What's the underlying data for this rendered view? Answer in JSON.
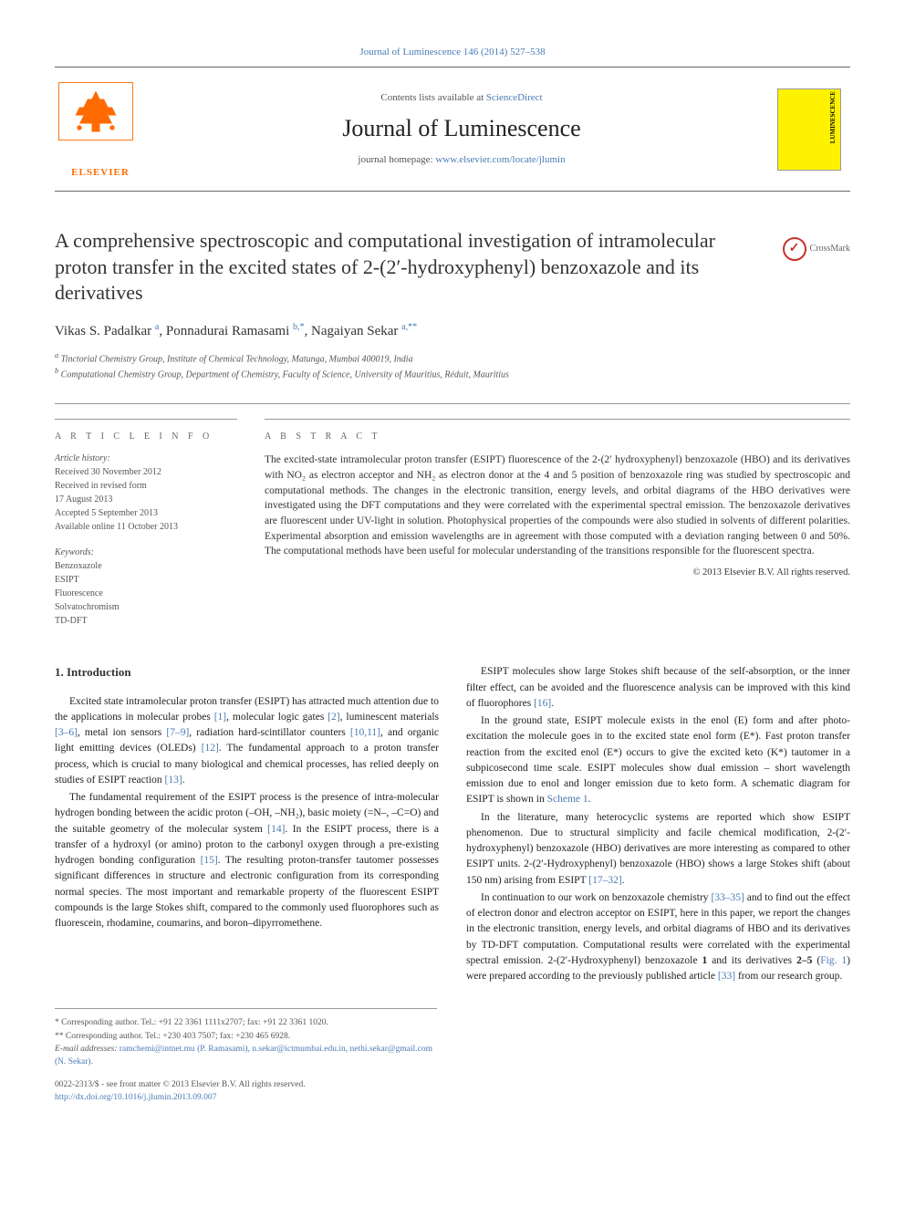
{
  "journal": {
    "top_link": "Journal of Luminescence 146 (2014) 527–538",
    "contents_line_prefix": "Contents lists available at ",
    "contents_link": "ScienceDirect",
    "title": "Journal of Luminescence",
    "homepage_prefix": "journal homepage: ",
    "homepage_url": "www.elsevier.com/locate/jlumin",
    "publisher_name": "ELSEVIER",
    "cover_label": "LUMINESCENCE"
  },
  "crossmark": {
    "label": "CrossMark"
  },
  "article": {
    "title": "A comprehensive spectroscopic and computational investigation of intramolecular proton transfer in the excited states of 2-(2′-hydroxyphenyl) benzoxazole and its derivatives",
    "authors_html": "Vikas S. Padalkar <sup class='author-sup'>a</sup>, Ponnadurai Ramasami <sup class='author-sup'>b,*</sup>, Nagaiyan Sekar <sup class='author-sup'>a,**</sup>",
    "affiliations": [
      "a Tinctorial Chemistry Group, Institute of Chemical Technology, Matunga, Mumbai 400019, India",
      "b Computational Chemistry Group, Department of Chemistry, Faculty of Science, University of Mauritius, Réduit, Mauritius"
    ]
  },
  "article_info": {
    "heading": "A R T I C L E   I N F O",
    "history_label": "Article history:",
    "history_lines": [
      "Received 30 November 2012",
      "Received in revised form",
      "17 August 2013",
      "Accepted 5 September 2013",
      "Available online 11 October 2013"
    ],
    "keywords_label": "Keywords:",
    "keywords": [
      "Benzoxazole",
      "ESIPT",
      "Fluorescence",
      "Solvatochromism",
      "TD-DFT"
    ]
  },
  "abstract": {
    "heading": "A B S T R A C T",
    "text": "The excited-state intramolecular proton transfer (ESIPT) fluorescence of the 2-(2′ hydroxyphenyl) benzoxazole (HBO) and its derivatives with NO₂ as electron acceptor and NH₂ as electron donor at the 4 and 5 position of benzoxazole ring was studied by spectroscopic and computational methods. The changes in the electronic transition, energy levels, and orbital diagrams of the HBO derivatives were investigated using the DFT computations and they were correlated with the experimental spectral emission. The benzoxazole derivatives are fluorescent under UV-light in solution. Photophysical properties of the compounds were also studied in solvents of different polarities. Experimental absorption and emission wavelengths are in agreement with those computed with a deviation ranging between 0 and 50%. The computational methods have been useful for molecular understanding of the transitions responsible for the fluorescent spectra.",
    "copyright": "© 2013 Elsevier B.V. All rights reserved."
  },
  "body": {
    "section_number": "1.",
    "section_title": "Introduction",
    "col1_paragraphs": [
      "Excited state intramolecular proton transfer (ESIPT) has attracted much attention due to the applications in molecular probes <span class='ref-link'>[1]</span>, molecular logic gates <span class='ref-link'>[2]</span>, luminescent materials <span class='ref-link'>[3–6]</span>, metal ion sensors <span class='ref-link'>[7–9]</span>, radiation hard-scintillator counters <span class='ref-link'>[10,11]</span>, and organic light emitting devices (OLEDs) <span class='ref-link'>[12]</span>. The fundamental approach to a proton transfer process, which is crucial to many biological and chemical processes, has relied deeply on studies of ESIPT reaction <span class='ref-link'>[13]</span>.",
      "The fundamental requirement of the ESIPT process is the presence of intra-molecular hydrogen bonding between the acidic proton (–OH, –NH₂), basic moiety (=N–, –C=O) and the suitable geometry of the molecular system <span class='ref-link'>[14]</span>. In the ESIPT process, there is a transfer of a hydroxyl (or amino) proton to the carbonyl oxygen through a pre-existing hydrogen bonding configuration <span class='ref-link'>[15]</span>. The resulting proton-transfer tautomer possesses significant differences in structure and electronic configuration from its corresponding normal species. The most important and remarkable property of the fluorescent ESIPT compounds is the large Stokes shift, compared to the commonly used fluorophores such as fluorescein, rhodamine, coumarins, and boron–dipyrromethene."
    ],
    "col2_paragraphs": [
      "ESIPT molecules show large Stokes shift because of the self-absorption, or the inner filter effect, can be avoided and the fluorescence analysis can be improved with this kind of fluorophores <span class='ref-link'>[16]</span>.",
      "In the ground state, ESIPT molecule exists in the enol (E) form and after photo-excitation the molecule goes in to the excited state enol form (E*). Fast proton transfer reaction from the excited enol (E*) occurs to give the excited keto (K*) tautomer in a subpicosecond time scale. ESIPT molecules show dual emission – short wavelength emission due to enol and longer emission due to keto form. A schematic diagram for ESIPT is shown in <span class='ref-link'>Scheme 1</span>.",
      "In the literature, many heterocyclic systems are reported which show ESIPT phenomenon. Due to structural simplicity and facile chemical modification, 2-(2′-hydroxyphenyl) benzoxazole (HBO) derivatives are more interesting as compared to other ESIPT units. 2-(2′-Hydroxyphenyl) benzoxazole (HBO) shows a large Stokes shift (about 150 nm) arising from ESIPT <span class='ref-link'>[17–32]</span>.",
      "In continuation to our work on benzoxazole chemistry <span class='ref-link'>[33–35]</span> and to find out the effect of electron donor and electron acceptor on ESIPT, here in this paper, we report the changes in the electronic transition, energy levels, and orbital diagrams of HBO and its derivatives by TD-DFT computation. Computational results were correlated with the experimental spectral emission. 2-(2′-Hydroxyphenyl) benzoxazole <b>1</b> and its derivatives <b>2–5</b> (<span class='ref-link'>Fig. 1</span>) were prepared according to the previously published article <span class='ref-link'>[33]</span> from our research group."
    ]
  },
  "footer": {
    "corr1": "* Corresponding author. Tel.: +91 22 3361 1111x2707; fax: +91 22 3361 1020.",
    "corr2": "** Corresponding author. Tel.: +230 403 7507; fax: +230 465 6928.",
    "email_label": "E-mail addresses: ",
    "emails": "ramchemi@intnet.mu (P. Ramasami), n.sekar@ictmumbai.edu.in, nethi.sekar@gmail.com (N. Sekar).",
    "issn_line": "0022-2313/$ - see front matter © 2013 Elsevier B.V. All rights reserved.",
    "doi": "http://dx.doi.org/10.1016/j.jlumin.2013.09.007"
  },
  "colors": {
    "link": "#4a7bb5",
    "elsevier_orange": "#ff6b00",
    "crossmark_red": "#c8322e",
    "cover_yellow": "#fff200",
    "text": "#333333",
    "muted": "#555555",
    "rule": "#999999"
  }
}
